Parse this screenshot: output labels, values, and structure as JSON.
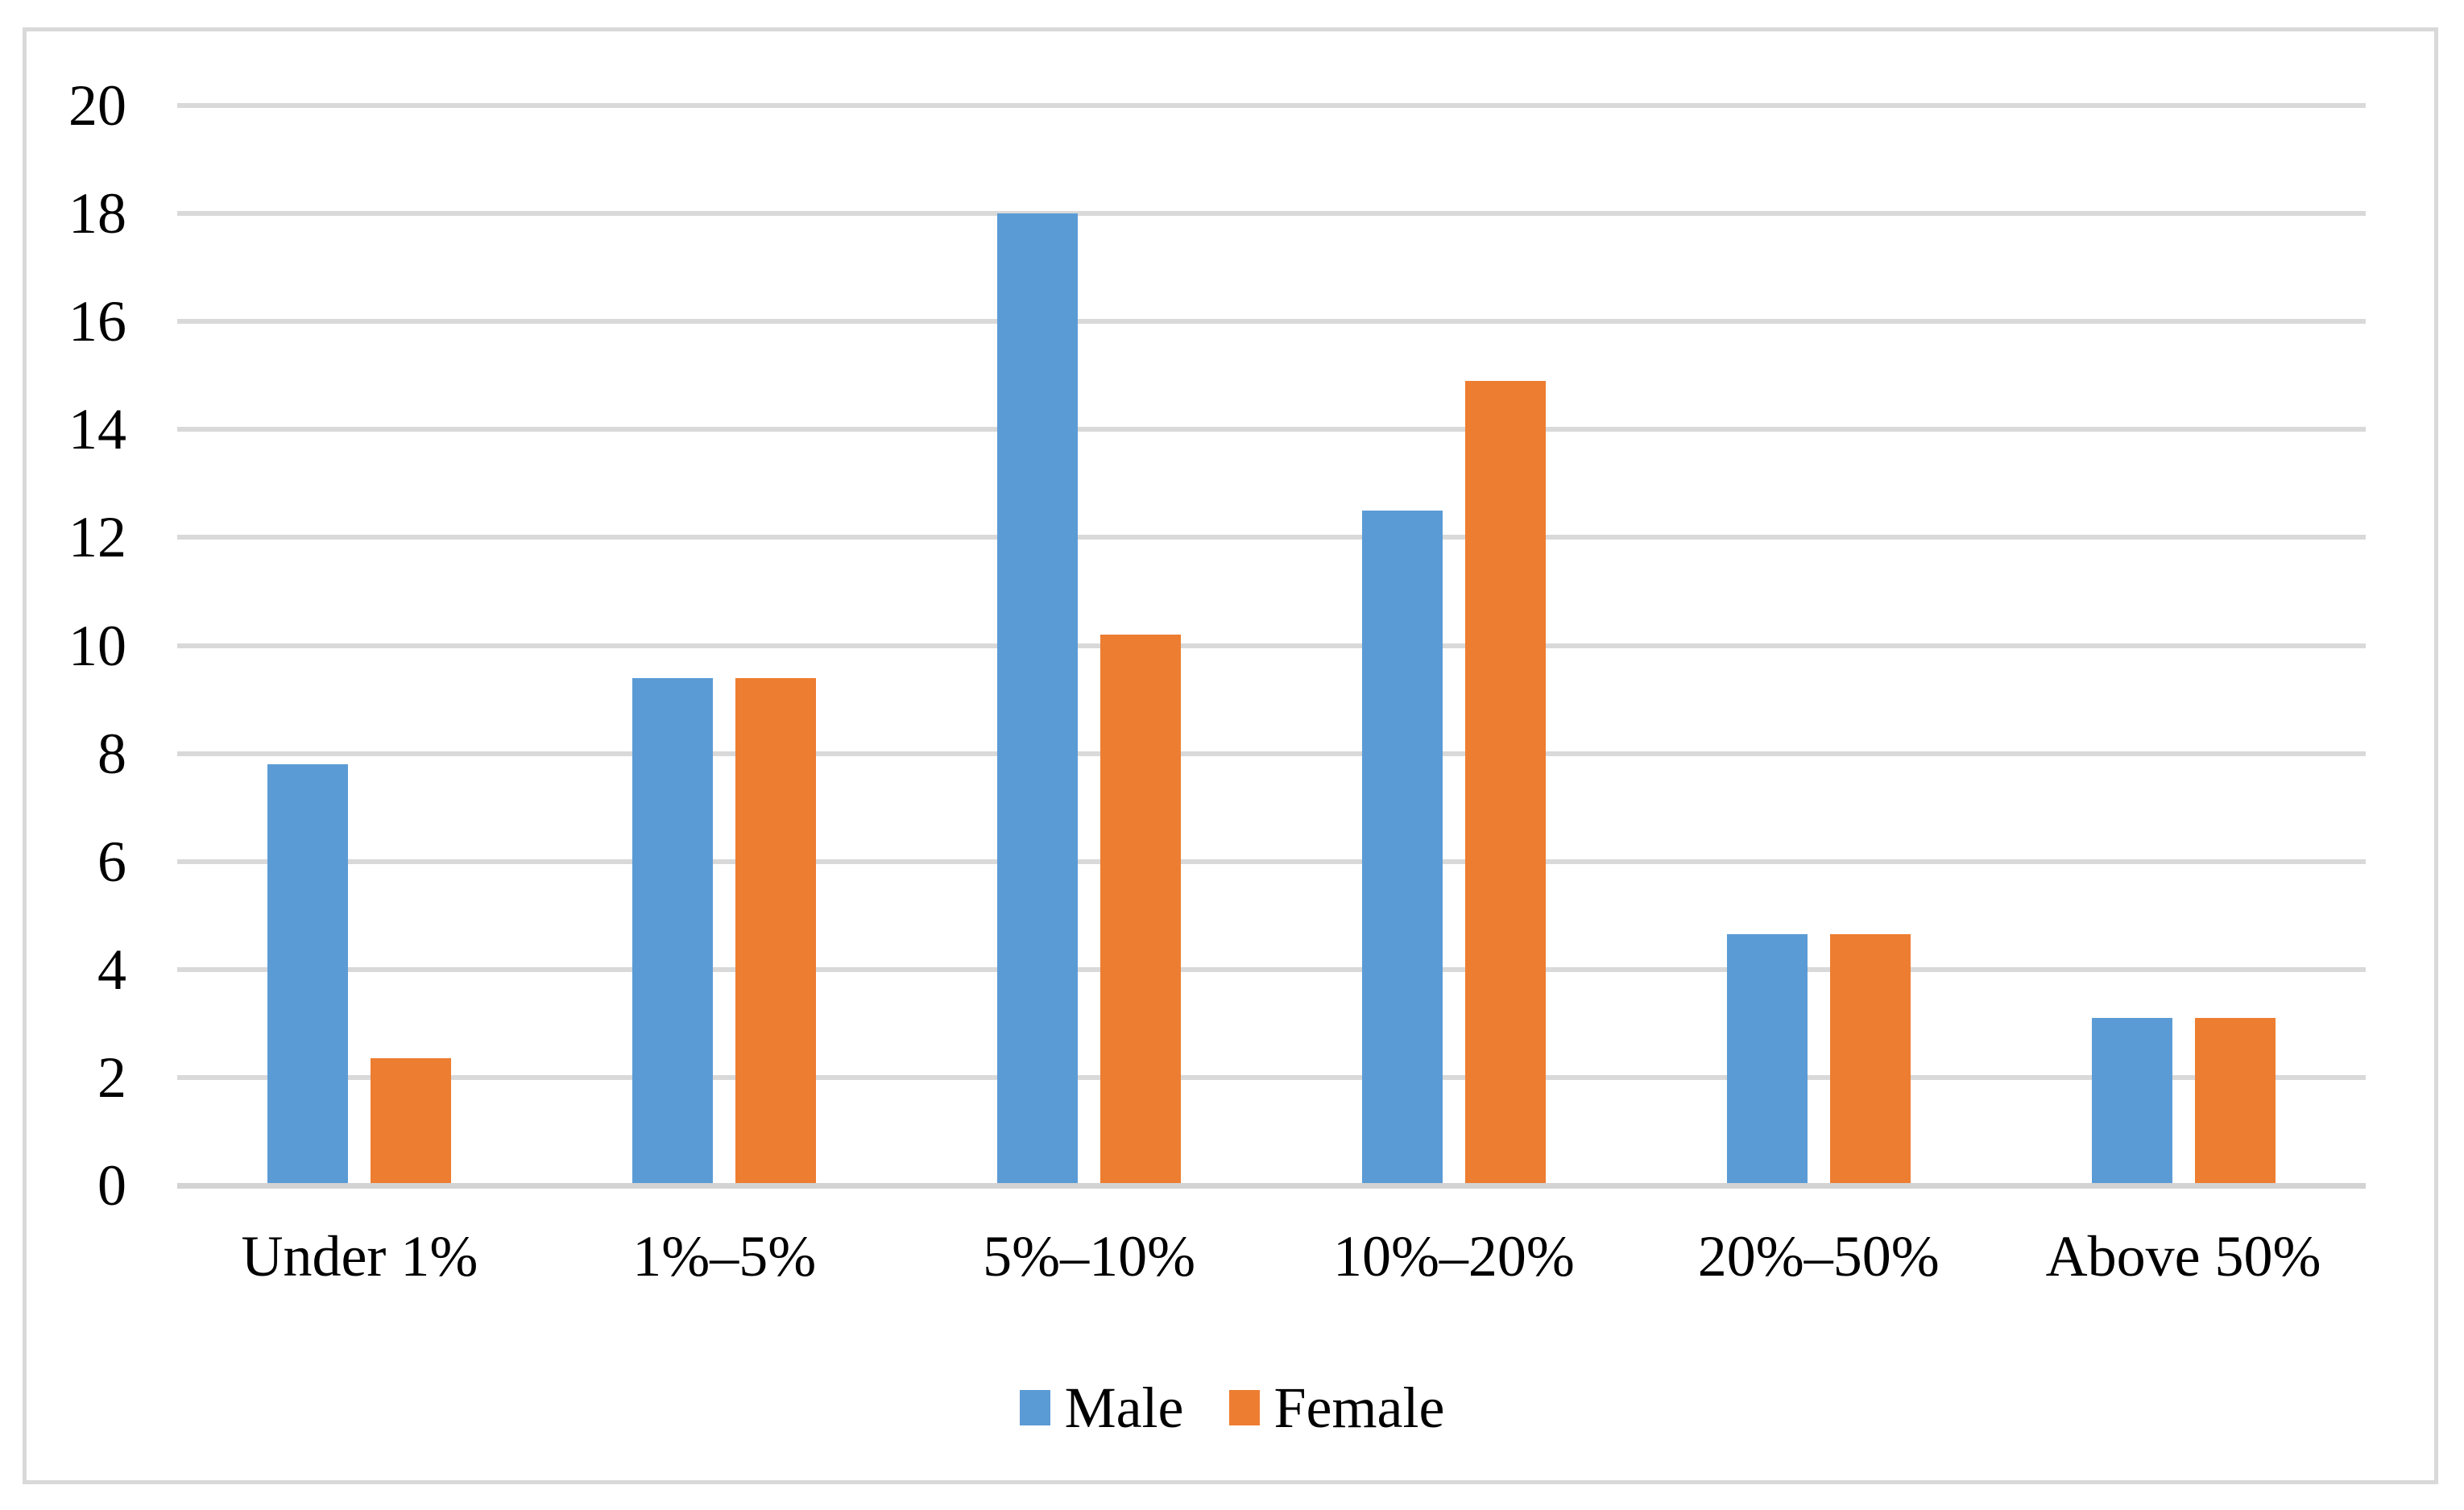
{
  "chart_data": {
    "type": "bar",
    "title": "",
    "xlabel": "",
    "ylabel": "",
    "categories": [
      "Under 1%",
      "1%–5%",
      "5%–10%",
      "10%–20%",
      "20%–50%",
      "Above 50%"
    ],
    "series": [
      {
        "name": "Male",
        "color": "#5B9BD5",
        "values": [
          7.8,
          9.4,
          18,
          12.5,
          4.65,
          3.1
        ]
      },
      {
        "name": "Female",
        "color": "#ED7D31",
        "values": [
          2.35,
          9.4,
          10.2,
          14.9,
          4.65,
          3.1
        ]
      }
    ],
    "ylim": [
      0,
      20
    ],
    "yticks": [
      0,
      2,
      4,
      6,
      8,
      10,
      12,
      14,
      16,
      18,
      20
    ],
    "grid": "horizontal",
    "gridline_color": "#D9D9D9",
    "axis_line_color": "#D3D3D3",
    "border_color": "#D9D9D9",
    "background_color": "#FFFFFF",
    "text_color": "#000000",
    "legend_position": "bottom"
  }
}
